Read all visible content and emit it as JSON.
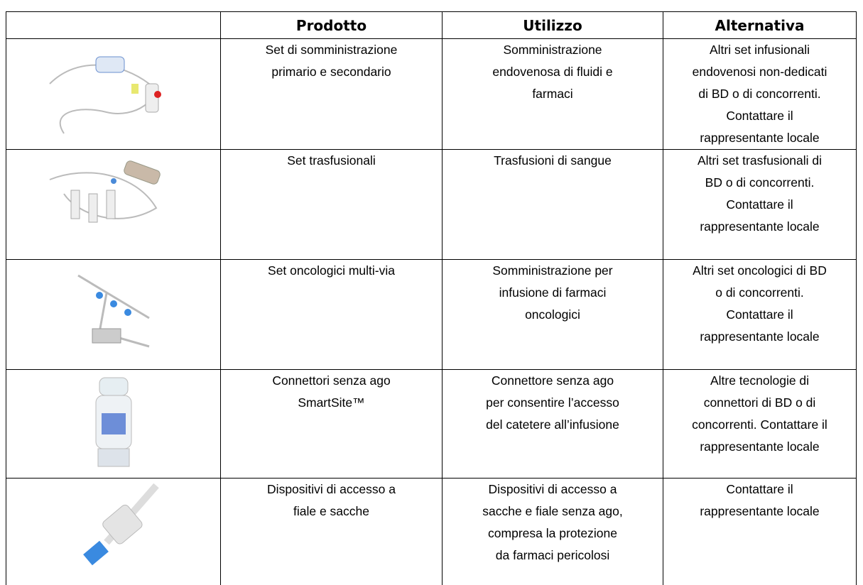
{
  "table": {
    "header": [
      "Prodotto",
      "Utilizzo",
      "Alternativa"
    ],
    "rows": [
      [
        [
          "Set di somministrazione",
          "primario e secondario"
        ],
        [
          "Somministrazione",
          "endovenosa di fluidi e",
          "farmaci"
        ],
        [
          "Altri set infusionali",
          "endovenosi non-dedicati",
          "di BD o di concorrenti.",
          "Contattare il",
          "rappresentante locale"
        ]
      ],
      [
        [
          "Set trasfusionali"
        ],
        [
          "Trasfusioni di sangue"
        ],
        [
          "Altri set trasfusionali di",
          "BD o di concorrenti.",
          "Contattare il",
          "rappresentante locale"
        ]
      ],
      [
        [
          "Set oncologici multi-via"
        ],
        [
          "Somministrazione per",
          "infusione di farmaci",
          "oncologici"
        ],
        [
          "Altri set oncologici di BD",
          "o di concorrenti.",
          "Contattare il",
          "rappresentante locale"
        ]
      ],
      [
        [
          "Connettori senza ago",
          "SmartSite™"
        ],
        [
          "Connettore senza ago",
          "per consentire l’accesso",
          "del catetere all’infusione"
        ],
        [
          "Altre tecnologie di",
          "connettori di BD o di",
          "concorrenti. Contattare il",
          "rappresentante locale"
        ]
      ],
      [
        [
          "Dispositivi di accesso a",
          "fiale e sacche"
        ],
        [
          "Dispositivi di accesso a",
          "sacche e fiale senza ago,",
          "compresa la protezione",
          "da farmaci pericolosi"
        ],
        [
          "Contattare il",
          "rappresentante locale"
        ]
      ]
    ]
  }
}
